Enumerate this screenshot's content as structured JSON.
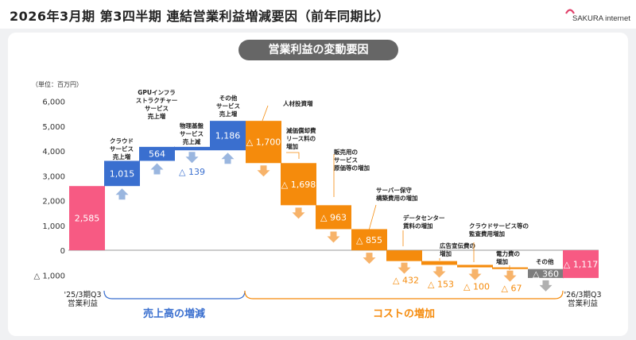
{
  "header": {
    "title": "2026年3月期 第3四半期 連結営業利益増減要因（前年同期比）",
    "logo_text": "SAKURA internet"
  },
  "subtitle": "営業利益の変動要因",
  "colors": {
    "pink": "#f75a83",
    "blue": "#3a6fcf",
    "orange": "#f58b0c",
    "gray": "#7d7d7d",
    "arrow_blue": "#9ab6df",
    "arrow_orange": "#f7b36a",
    "arrow_gray": "#b0b0b0",
    "bracket_blue": "#3a6fcf",
    "bracket_orange": "#f58b0c"
  },
  "chart_data": {
    "type": "waterfall",
    "unit_label": "（単位：百万円）",
    "ylim": [
      -1000,
      6000
    ],
    "yticks": [
      -1000,
      0,
      1000,
      2000,
      3000,
      4000,
      5000,
      6000
    ],
    "ytick_labels": [
      "△ 1,000",
      "0",
      "1,000",
      "2,000",
      "3,000",
      "4,000",
      "5,000",
      "6,000"
    ],
    "bars": [
      {
        "id": "start",
        "category": "'25/3期Q3\n営業利益",
        "start": 0,
        "end": 2585,
        "value_label": "2,585",
        "kind": "total",
        "annotation": ""
      },
      {
        "id": "cloud",
        "category": "",
        "start": 2585,
        "end": 3600,
        "value_label": "1,015",
        "kind": "increase",
        "annotation": "クラウド\nサービス\n売上増"
      },
      {
        "id": "gpu",
        "category": "",
        "start": 3600,
        "end": 4164,
        "value_label": "564",
        "kind": "increase",
        "annotation": "GPUインフラ\nストラクチャー\nサービス\n売上増"
      },
      {
        "id": "physical",
        "category": "",
        "start": 4164,
        "end": 4025,
        "value_label": "△ 139",
        "kind": "decrease-rev",
        "annotation": "物理基盤\nサービス\n売上減"
      },
      {
        "id": "other_rev",
        "category": "",
        "start": 4025,
        "end": 5211,
        "value_label": "1,186",
        "kind": "increase",
        "annotation": "その他\nサービス\n売上増"
      },
      {
        "id": "personnel",
        "category": "",
        "start": 5211,
        "end": 3511,
        "value_label": "△ 1,700",
        "kind": "cost",
        "annotation": "人材投資増"
      },
      {
        "id": "depreciation",
        "category": "",
        "start": 3511,
        "end": 1813,
        "value_label": "△ 1,698",
        "kind": "cost",
        "annotation": "減価償却費\nリース料の\n増加"
      },
      {
        "id": "cogs",
        "category": "",
        "start": 1813,
        "end": 850,
        "value_label": "△ 963",
        "kind": "cost",
        "annotation": "販売用の\nサービス\n原価等の増加"
      },
      {
        "id": "server",
        "category": "",
        "start": 850,
        "end": -5,
        "value_label": "△ 855",
        "kind": "cost",
        "annotation": "サーバー保守\n構築費用の増加"
      },
      {
        "id": "datacenter",
        "category": "",
        "start": -5,
        "end": -437,
        "value_label": "△ 432",
        "kind": "cost",
        "annotation": "データセンター\n賃料の増加"
      },
      {
        "id": "ads",
        "category": "",
        "start": -437,
        "end": -590,
        "value_label": "△ 153",
        "kind": "cost",
        "annotation": "広告宣伝費の\n増加"
      },
      {
        "id": "audit",
        "category": "",
        "start": -590,
        "end": -690,
        "value_label": "△ 100",
        "kind": "cost",
        "annotation": "クラウドサービス等の\n監査費用増加"
      },
      {
        "id": "power",
        "category": "",
        "start": -690,
        "end": -757,
        "value_label": "△ 67",
        "kind": "cost",
        "annotation": "電力費の\n増加"
      },
      {
        "id": "other_cost",
        "category": "",
        "start": -757,
        "end": -1117,
        "value_label": "△ 360",
        "kind": "other",
        "annotation": "その他"
      },
      {
        "id": "end",
        "category": "'26/3期Q3\n営業利益",
        "start": 0,
        "end": -1117,
        "value_label": "△ 1,117",
        "kind": "total",
        "annotation": ""
      }
    ],
    "groups": [
      {
        "label": "売上高の増減",
        "color": "blue"
      },
      {
        "label": "コストの増加",
        "color": "orange"
      }
    ]
  }
}
